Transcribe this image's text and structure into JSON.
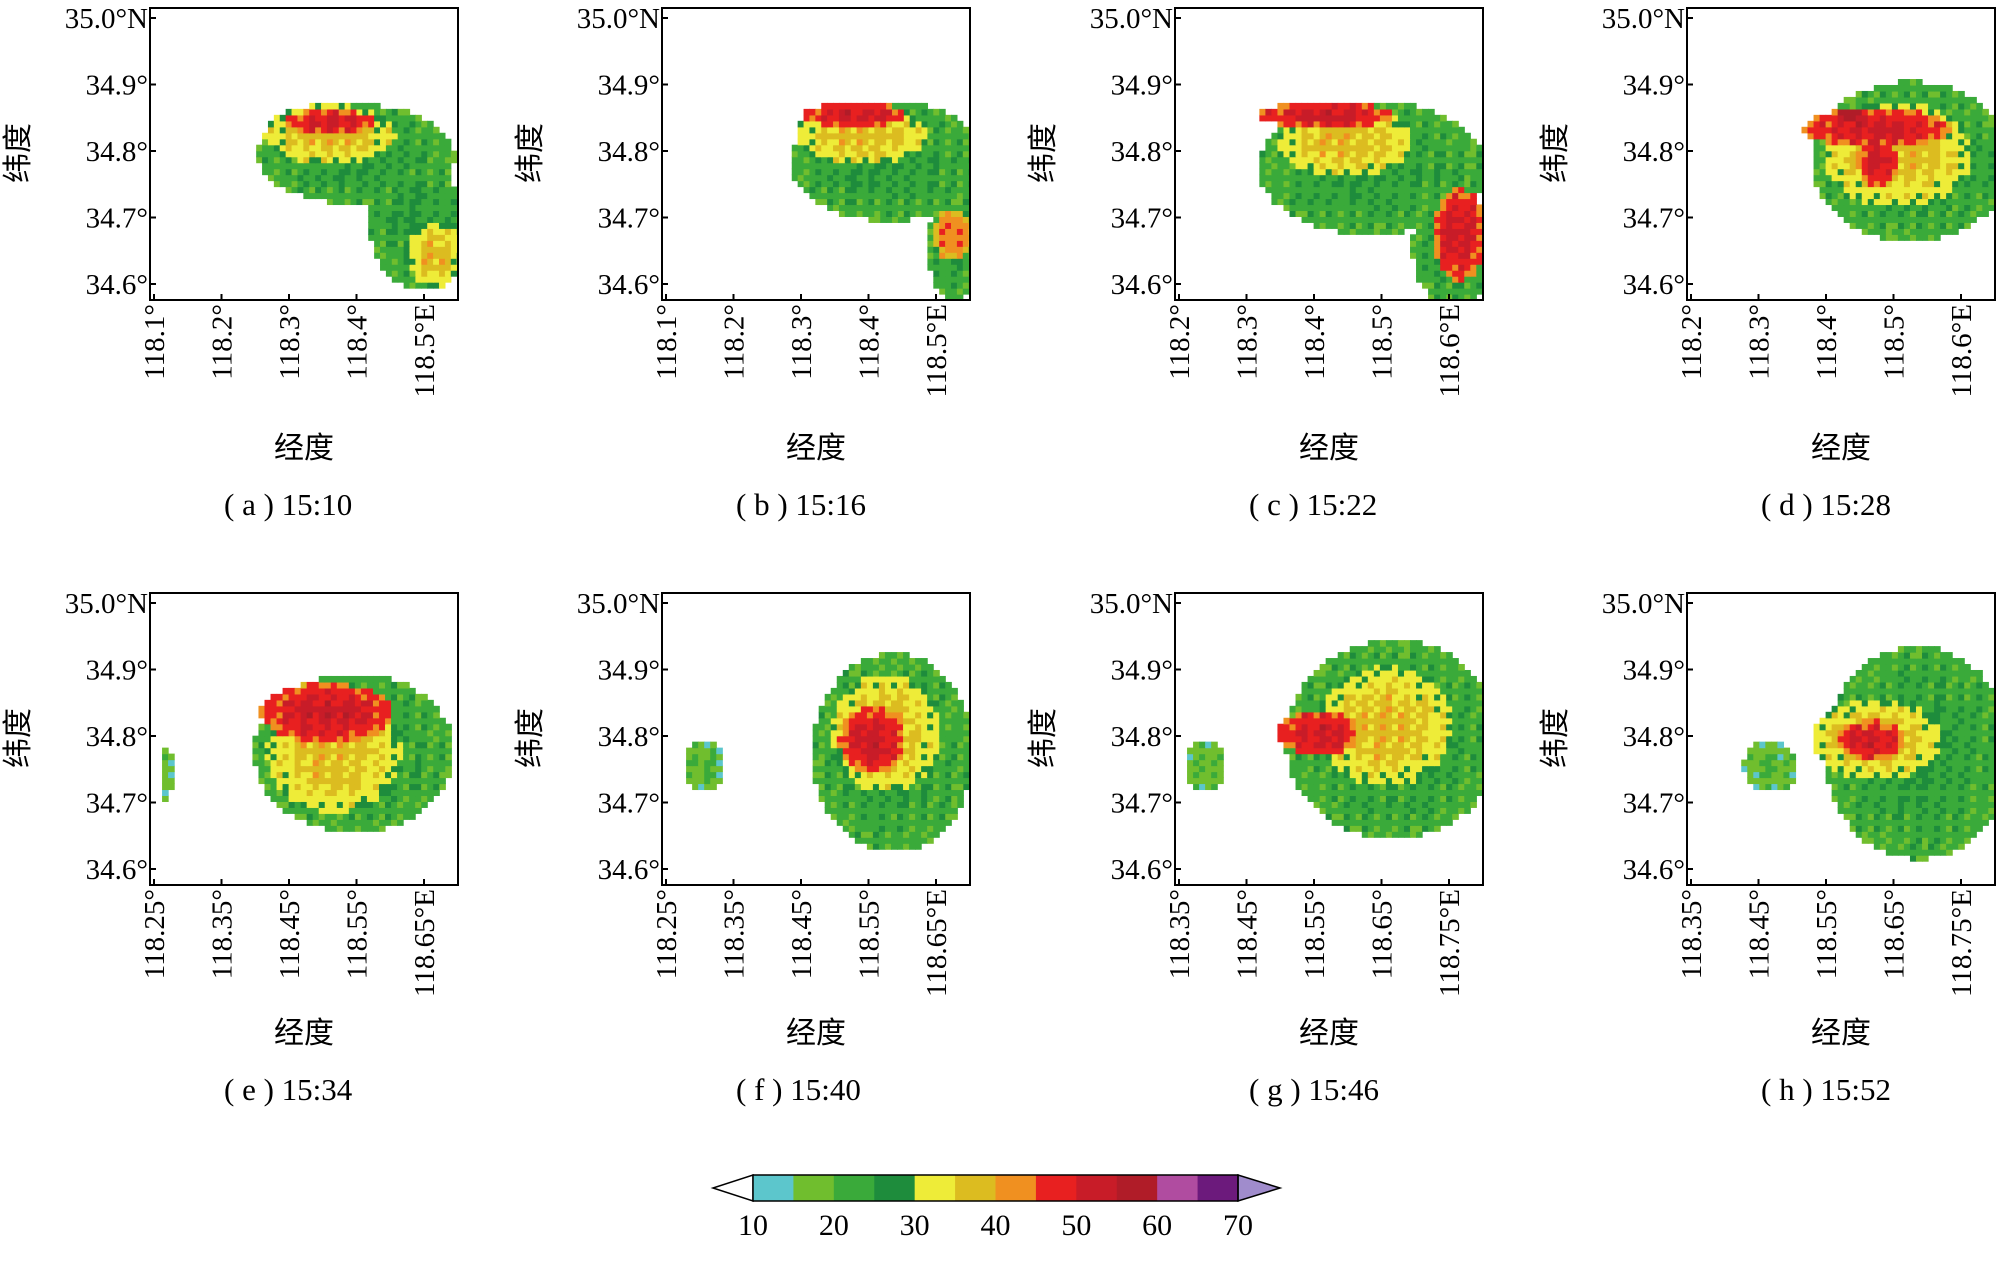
{
  "figure": {
    "panels": [
      {
        "id": "a",
        "caption": "( a ) 15:10",
        "x_ticks": [
          "118.1°",
          "118.2°",
          "118.3°",
          "118.4°",
          "118.5°E"
        ],
        "y_ticks": [
          "35.0°N",
          "34.9°",
          "34.8°",
          "34.7°",
          "34.6°"
        ],
        "xlabel": "经度",
        "ylabel": "纬度"
      },
      {
        "id": "b",
        "caption": "( b ) 15:16",
        "x_ticks": [
          "118.1°",
          "118.2°",
          "118.3°",
          "118.4°",
          "118.5°E"
        ],
        "y_ticks": [
          "35.0°N",
          "34.9°",
          "34.8°",
          "34.7°",
          "34.6°"
        ],
        "xlabel": "经度",
        "ylabel": "纬度"
      },
      {
        "id": "c",
        "caption": "( c ) 15:22",
        "x_ticks": [
          "118.2°",
          "118.3°",
          "118.4°",
          "118.5°",
          "118.6°E"
        ],
        "y_ticks": [
          "35.0°N",
          "34.9°",
          "34.8°",
          "34.7°",
          "34.6°"
        ],
        "xlabel": "经度",
        "ylabel": "纬度"
      },
      {
        "id": "d",
        "caption": "( d ) 15:28",
        "x_ticks": [
          "118.2°",
          "118.3°",
          "118.4°",
          "118.5°",
          "118.6°E"
        ],
        "y_ticks": [
          "35.0°N",
          "34.9°",
          "34.8°",
          "34.7°",
          "34.6°"
        ],
        "xlabel": "经度",
        "ylabel": "纬度"
      },
      {
        "id": "e",
        "caption": "( e ) 15:34",
        "x_ticks": [
          "118.25°",
          "118.35°",
          "118.45°",
          "118.55°",
          "118.65°E"
        ],
        "y_ticks": [
          "35.0°N",
          "34.9°",
          "34.8°",
          "34.7°",
          "34.6°"
        ],
        "xlabel": "经度",
        "ylabel": "纬度"
      },
      {
        "id": "f",
        "caption": "( f ) 15:40",
        "x_ticks": [
          "118.25°",
          "118.35°",
          "118.45°",
          "118.55°",
          "118.65°E"
        ],
        "y_ticks": [
          "35.0°N",
          "34.9°",
          "34.8°",
          "34.7°",
          "34.6°"
        ],
        "xlabel": "经度",
        "ylabel": "纬度"
      },
      {
        "id": "g",
        "caption": "( g ) 15:46",
        "x_ticks": [
          "118.35°",
          "118.45°",
          "118.55°",
          "118.65°",
          "118.75°E"
        ],
        "y_ticks": [
          "35.0°N",
          "34.9°",
          "34.8°",
          "34.7°",
          "34.6°"
        ],
        "xlabel": "经度",
        "ylabel": "纬度"
      },
      {
        "id": "h",
        "caption": "( h ) 15:52",
        "x_ticks": [
          "118.35°",
          "118.45°",
          "118.55°",
          "118.65°",
          "118.75°E"
        ],
        "y_ticks": [
          "35.0°N",
          "34.9°",
          "34.8°",
          "34.7°",
          "34.6°"
        ],
        "xlabel": "经度",
        "ylabel": "纬度"
      }
    ],
    "colorbar": {
      "labels": [
        "10",
        "20",
        "30",
        "40",
        "50",
        "60",
        "70"
      ],
      "colors": [
        "#5cc6cc",
        "#70be2e",
        "#3aaa3a",
        "#1e8c3c",
        "#eeec38",
        "#dcbc20",
        "#f09020",
        "#e82020",
        "#c81c28",
        "#b01c28",
        "#b04ca0",
        "#6c1a7c"
      ],
      "over_color": "#a08ccc",
      "under_color": "#ffffff"
    }
  },
  "chart_data": [
    {
      "type": "heatmap",
      "panel": "a",
      "title": "( a ) 15:10",
      "xlabel": "经度",
      "ylabel": "纬度",
      "xlim": [
        118.08,
        118.55
      ],
      "ylim": [
        34.585,
        35.025
      ],
      "cells": [
        {
          "cx": 118.39,
          "cy": 34.8,
          "rx": 0.15,
          "ry": 0.075,
          "value": 25
        },
        {
          "cx": 118.48,
          "cy": 34.7,
          "rx": 0.07,
          "ry": 0.1,
          "value": 25
        },
        {
          "cx": 118.35,
          "cy": 34.83,
          "rx": 0.1,
          "ry": 0.045,
          "value": 38
        },
        {
          "cx": 118.51,
          "cy": 34.65,
          "rx": 0.04,
          "ry": 0.05,
          "value": 38
        },
        {
          "cx": 118.35,
          "cy": 34.85,
          "rx": 0.07,
          "ry": 0.018,
          "value": 52
        }
      ]
    },
    {
      "type": "heatmap",
      "panel": "b",
      "title": "( b ) 15:16",
      "xlabel": "经度",
      "ylabel": "纬度",
      "xlim": [
        118.08,
        118.55
      ],
      "ylim": [
        34.585,
        35.025
      ],
      "cells": [
        {
          "cx": 118.42,
          "cy": 34.79,
          "rx": 0.15,
          "ry": 0.09,
          "value": 25
        },
        {
          "cx": 118.52,
          "cy": 34.66,
          "rx": 0.04,
          "ry": 0.08,
          "value": 25
        },
        {
          "cx": 118.38,
          "cy": 34.83,
          "rx": 0.1,
          "ry": 0.045,
          "value": 38
        },
        {
          "cx": 118.52,
          "cy": 34.68,
          "rx": 0.03,
          "ry": 0.04,
          "value": 45
        },
        {
          "cx": 118.37,
          "cy": 34.86,
          "rx": 0.08,
          "ry": 0.018,
          "value": 52
        }
      ]
    },
    {
      "type": "heatmap",
      "panel": "c",
      "title": "( c ) 15:22",
      "xlabel": "经度",
      "ylabel": "纬度",
      "xlim": [
        118.19,
        118.65
      ],
      "ylim": [
        34.585,
        35.025
      ],
      "cells": [
        {
          "cx": 118.48,
          "cy": 34.78,
          "rx": 0.17,
          "ry": 0.1,
          "value": 25
        },
        {
          "cx": 118.6,
          "cy": 34.66,
          "rx": 0.06,
          "ry": 0.09,
          "value": 25
        },
        {
          "cx": 118.44,
          "cy": 34.82,
          "rx": 0.1,
          "ry": 0.055,
          "value": 38
        },
        {
          "cx": 118.61,
          "cy": 34.68,
          "rx": 0.04,
          "ry": 0.07,
          "value": 52
        },
        {
          "cx": 118.41,
          "cy": 34.86,
          "rx": 0.1,
          "ry": 0.02,
          "value": 52
        }
      ]
    },
    {
      "type": "heatmap",
      "panel": "d",
      "title": "( d ) 15:28",
      "xlabel": "经度",
      "ylabel": "纬度",
      "xlim": [
        118.19,
        118.65
      ],
      "ylim": [
        34.585,
        35.025
      ],
      "cells": [
        {
          "cx": 118.52,
          "cy": 34.79,
          "rx": 0.15,
          "ry": 0.12,
          "value": 25
        },
        {
          "cx": 118.5,
          "cy": 34.8,
          "rx": 0.11,
          "ry": 0.08,
          "value": 38
        },
        {
          "cx": 118.47,
          "cy": 34.84,
          "rx": 0.11,
          "ry": 0.03,
          "value": 52
        },
        {
          "cx": 118.47,
          "cy": 34.79,
          "rx": 0.03,
          "ry": 0.04,
          "value": 52
        },
        {
          "cx": 118.43,
          "cy": 34.86,
          "rx": 0.02,
          "ry": 0.01,
          "value": 60
        }
      ]
    },
    {
      "type": "heatmap",
      "panel": "e",
      "title": "( e ) 15:34",
      "xlabel": "经度",
      "ylabel": "纬度",
      "xlim": [
        118.24,
        118.7
      ],
      "ylim": [
        34.585,
        35.025
      ],
      "cells": [
        {
          "cx": 118.54,
          "cy": 34.78,
          "rx": 0.15,
          "ry": 0.12,
          "value": 25
        },
        {
          "cx": 118.51,
          "cy": 34.78,
          "rx": 0.1,
          "ry": 0.09,
          "value": 38
        },
        {
          "cx": 118.5,
          "cy": 34.84,
          "rx": 0.1,
          "ry": 0.045,
          "value": 52
        },
        {
          "cx": 118.26,
          "cy": 34.75,
          "rx": 0.01,
          "ry": 0.04,
          "value": 20
        }
      ]
    },
    {
      "type": "heatmap",
      "panel": "f",
      "title": "( f ) 15:40",
      "xlabel": "经度",
      "ylabel": "纬度",
      "xlim": [
        118.24,
        118.7
      ],
      "ylim": [
        34.585,
        35.025
      ],
      "cells": [
        {
          "cx": 118.58,
          "cy": 34.78,
          "rx": 0.12,
          "ry": 0.15,
          "value": 25
        },
        {
          "cx": 118.57,
          "cy": 34.81,
          "rx": 0.08,
          "ry": 0.09,
          "value": 38
        },
        {
          "cx": 118.55,
          "cy": 34.8,
          "rx": 0.05,
          "ry": 0.05,
          "value": 52
        },
        {
          "cx": 118.3,
          "cy": 34.76,
          "rx": 0.03,
          "ry": 0.04,
          "value": 20
        }
      ]
    },
    {
      "type": "heatmap",
      "panel": "g",
      "title": "( g ) 15:46",
      "xlabel": "经度",
      "ylabel": "纬度",
      "xlim": [
        118.34,
        118.8
      ],
      "ylim": [
        34.585,
        35.025
      ],
      "cells": [
        {
          "cx": 118.66,
          "cy": 34.8,
          "rx": 0.16,
          "ry": 0.15,
          "value": 25
        },
        {
          "cx": 118.65,
          "cy": 34.82,
          "rx": 0.1,
          "ry": 0.09,
          "value": 38
        },
        {
          "cx": 118.55,
          "cy": 34.81,
          "rx": 0.06,
          "ry": 0.035,
          "value": 52
        },
        {
          "cx": 118.38,
          "cy": 34.76,
          "rx": 0.03,
          "ry": 0.04,
          "value": 20
        }
      ]
    },
    {
      "type": "heatmap",
      "panel": "h",
      "title": "( h ) 15:52",
      "xlabel": "经度",
      "ylabel": "纬度",
      "xlim": [
        118.34,
        118.8
      ],
      "ylim": [
        34.585,
        35.025
      ],
      "cells": [
        {
          "cx": 118.68,
          "cy": 34.78,
          "rx": 0.14,
          "ry": 0.16,
          "value": 25
        },
        {
          "cx": 118.62,
          "cy": 34.8,
          "rx": 0.1,
          "ry": 0.06,
          "value": 38
        },
        {
          "cx": 118.61,
          "cy": 34.8,
          "rx": 0.05,
          "ry": 0.03,
          "value": 52
        },
        {
          "cx": 118.46,
          "cy": 34.76,
          "rx": 0.04,
          "ry": 0.04,
          "value": 20
        }
      ]
    }
  ]
}
